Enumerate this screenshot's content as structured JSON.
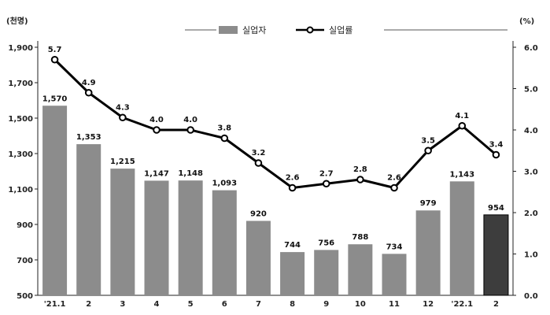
{
  "chart_data": {
    "type": "bar+line",
    "categories": [
      "'21.1",
      "2",
      "3",
      "4",
      "5",
      "6",
      "7",
      "8",
      "9",
      "10",
      "11",
      "12",
      "'22.1",
      "2"
    ],
    "series": [
      {
        "name": "실업자",
        "type": "bar",
        "axis": "left",
        "values": [
          1570,
          1353,
          1215,
          1147,
          1148,
          1093,
          920,
          744,
          756,
          788,
          734,
          979,
          1143,
          954
        ],
        "labels": [
          "1,570",
          "1,353",
          "1,215",
          "1,147",
          "1,148",
          "1,093",
          "920",
          "744",
          "756",
          "788",
          "734",
          "979",
          "1,143",
          "954"
        ],
        "highlight_index": 13
      },
      {
        "name": "실업률",
        "type": "line",
        "axis": "right",
        "values": [
          5.7,
          4.9,
          4.3,
          4.0,
          4.0,
          3.8,
          3.2,
          2.6,
          2.7,
          2.8,
          2.6,
          3.5,
          4.1,
          3.4
        ],
        "labels": [
          "5.7",
          "4.9",
          "4.3",
          "4.0",
          "4.0",
          "3.8",
          "3.2",
          "2.6",
          "2.7",
          "2.8",
          "2.6",
          "3.5",
          "4.1",
          "3.4"
        ]
      }
    ],
    "y_left": {
      "unit": "(천명)",
      "ylim": [
        500,
        1900
      ],
      "ticks": [
        500,
        700,
        900,
        1100,
        1300,
        1500,
        1700,
        1900
      ],
      "tick_labels": [
        "500",
        "700",
        "900",
        "1,100",
        "1,300",
        "1,500",
        "1,700",
        "1,900"
      ]
    },
    "y_right": {
      "unit": "(%)",
      "ylim": [
        0,
        6.0
      ],
      "ticks": [
        0,
        1,
        2,
        3,
        4,
        5,
        6
      ],
      "tick_labels": [
        "0.0",
        "1.0",
        "2.0",
        "3.0",
        "4.0",
        "5.0",
        "6.0"
      ]
    },
    "grid": false,
    "legend_position": "top-center",
    "colors": {
      "bar": "#8c8c8c",
      "bar_highlight": "#3d3d3d",
      "line": "#000000",
      "marker_fill": "#ffffff"
    }
  }
}
